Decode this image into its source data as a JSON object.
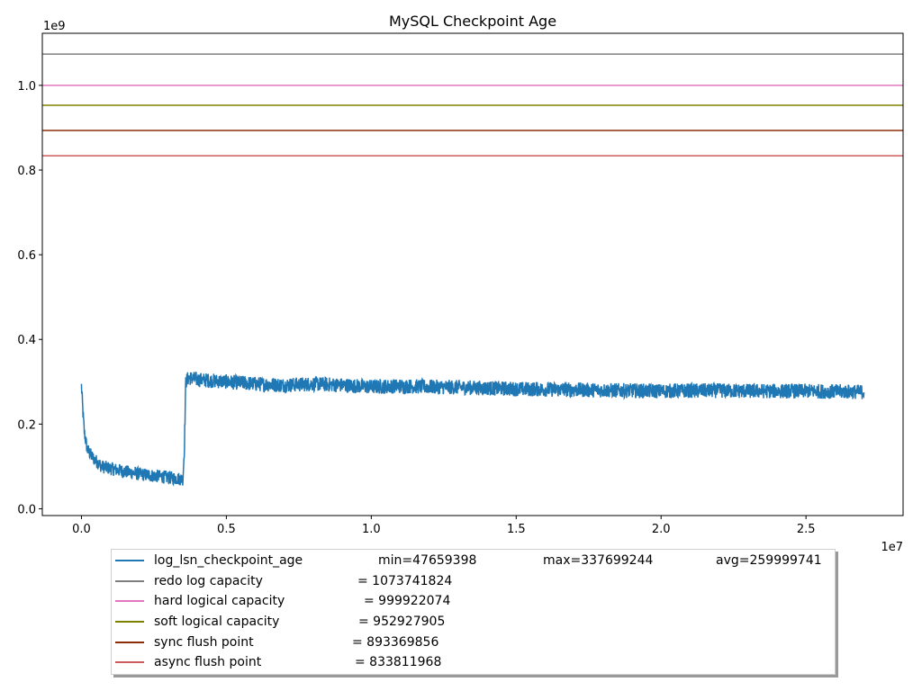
{
  "chart_data": {
    "type": "line",
    "title": "MySQL Checkpoint Age",
    "xlabel": "",
    "ylabel": "",
    "x_offset_label": "1e7",
    "y_offset_label": "1e9",
    "xlim": [
      -1350000,
      28350000
    ],
    "ylim": [
      -16000000,
      1123000000
    ],
    "x_ticks": [
      0,
      5000000,
      10000000,
      15000000,
      20000000,
      25000000
    ],
    "x_tick_labels": [
      "0.0",
      "0.5",
      "1.0",
      "1.5",
      "2.0",
      "2.5"
    ],
    "y_ticks": [
      0,
      200000000,
      400000000,
      600000000,
      800000000,
      1000000000
    ],
    "y_tick_labels": [
      "0.0",
      "0.2",
      "0.4",
      "0.6",
      "0.8",
      "1.0"
    ],
    "grid": false,
    "legend_position": "below",
    "series": [
      {
        "name": "log_lsn_checkpoint_age",
        "color": "#1f77b4",
        "stats": {
          "min": "min=47659398",
          "max": "max=337699244",
          "avg": "avg=259999741"
        },
        "x": [
          0,
          50000,
          100000,
          200000,
          400000,
          700000,
          1000000,
          1500000,
          2000000,
          2500000,
          3000000,
          3500000,
          3550000,
          3600000,
          3700000,
          4000000,
          5000000,
          6000000,
          7000000,
          8000000,
          9000000,
          10000000,
          11000000,
          12000000,
          13000000,
          14000000,
          15000000,
          16000000,
          17000000,
          18000000,
          19000000,
          20000000,
          21000000,
          22000000,
          23000000,
          24000000,
          25000000,
          26000000,
          27000000
        ],
        "y": [
          290000000,
          230000000,
          180000000,
          140000000,
          120000000,
          100000000,
          95000000,
          88000000,
          82000000,
          78000000,
          74000000,
          70000000,
          140000000,
          300000000,
          310000000,
          305000000,
          300000000,
          295000000,
          292000000,
          295000000,
          292000000,
          288000000,
          290000000,
          288000000,
          287000000,
          285000000,
          283000000,
          282000000,
          281000000,
          280000000,
          279000000,
          278000000,
          279000000,
          279000000,
          278000000,
          278000000,
          278000000,
          277000000,
          276000000
        ],
        "noise_band": 35000000
      },
      {
        "name": "redo log capacity",
        "value_label": "= 1073741824",
        "value": 1073741824,
        "color": "#7f7f7f"
      },
      {
        "name": "hard logical capacity",
        "value_label": "= 999922074",
        "value": 999922074,
        "color": "#e377c2"
      },
      {
        "name": "soft logical capacity",
        "value_label": "= 952927905",
        "value": 952927905,
        "color": "#808000"
      },
      {
        "name": "sync flush point",
        "value_label": "= 893369856",
        "value": 893369856,
        "color": "#8b2e08"
      },
      {
        "name": "async flush point",
        "value_label": "= 833811968",
        "value": 833811968,
        "color": "#cd5c5c"
      }
    ]
  }
}
